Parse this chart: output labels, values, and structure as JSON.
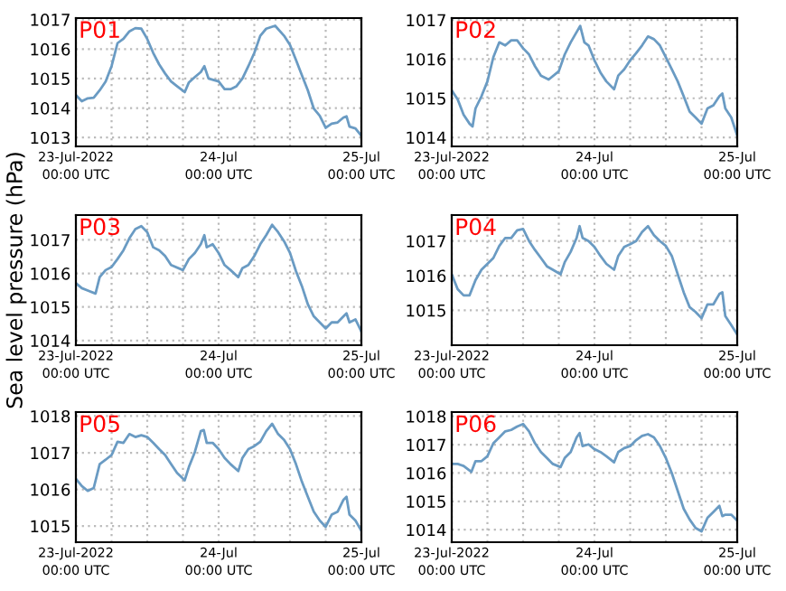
{
  "chart_data": [
    {
      "type": "line",
      "title": "P01",
      "xlim": [
        "2022-07-23T00:00",
        "2022-07-25T00:00"
      ],
      "ylim": [
        1012.7,
        1017.05
      ],
      "yticks": [
        1013,
        1014,
        1015,
        1016,
        1017
      ],
      "grid": true,
      "xticks": [
        {
          "value": "2022-07-23T00:00",
          "label": "23-Jul-2022\n00:00 UTC"
        },
        {
          "value": "2022-07-23T06:00",
          "label": null
        },
        {
          "value": "2022-07-23T12:00",
          "label": null
        },
        {
          "value": "2022-07-23T18:00",
          "label": null
        },
        {
          "value": "2022-07-24T00:00",
          "label": "24-Jul\n00:00 UTC"
        },
        {
          "value": "2022-07-24T06:00",
          "label": null
        },
        {
          "value": "2022-07-24T12:00",
          "label": null
        },
        {
          "value": "2022-07-24T18:00",
          "label": null
        },
        {
          "value": "2022-07-25T00:00",
          "label": "25-Jul\n00:00 UTC"
        }
      ],
      "series": [
        {
          "color": "#6a9bc3",
          "x": [
            "2022-07-23T00:00",
            "2022-07-23T01:00",
            "2022-07-23T02:00",
            "2022-07-23T03:00",
            "2022-07-23T04:00",
            "2022-07-23T05:00",
            "2022-07-23T06:00",
            "2022-07-23T07:00",
            "2022-07-23T08:00",
            "2022-07-23T09:00",
            "2022-07-23T10:00",
            "2022-07-23T11:00",
            "2022-07-23T12:00",
            "2022-07-23T13:00",
            "2022-07-23T14:00",
            "2022-07-23T15:00",
            "2022-07-23T16:00",
            "2022-07-23T17:00",
            "2022-07-23T18:18",
            "2022-07-23T19:00",
            "2022-07-23T20:00",
            "2022-07-23T21:00",
            "2022-07-23T21:36",
            "2022-07-23T22:18",
            "2022-07-24T00:00",
            "2022-07-24T01:00",
            "2022-07-24T02:00",
            "2022-07-24T03:00",
            "2022-07-24T04:00",
            "2022-07-24T05:00",
            "2022-07-24T06:00",
            "2022-07-24T07:00",
            "2022-07-24T08:00",
            "2022-07-24T09:30",
            "2022-07-24T11:00",
            "2022-07-24T12:00",
            "2022-07-24T13:00",
            "2022-07-24T14:00",
            "2022-07-24T15:00",
            "2022-07-24T16:00",
            "2022-07-24T17:00",
            "2022-07-24T18:00",
            "2022-07-24T19:00",
            "2022-07-24T20:00",
            "2022-07-24T21:00",
            "2022-07-24T21:30",
            "2022-07-24T22:00",
            "2022-07-24T23:00",
            "2022-07-25T00:00"
          ],
          "values": [
            1014.44,
            1014.23,
            1014.33,
            1014.35,
            1014.6,
            1014.9,
            1015.42,
            1016.2,
            1016.35,
            1016.6,
            1016.71,
            1016.69,
            1016.34,
            1015.87,
            1015.48,
            1015.17,
            1014.9,
            1014.74,
            1014.54,
            1014.87,
            1015.05,
            1015.22,
            1015.42,
            1015.0,
            1014.9,
            1014.64,
            1014.64,
            1014.74,
            1015.0,
            1015.42,
            1015.87,
            1016.45,
            1016.69,
            1016.79,
            1016.45,
            1016.14,
            1015.63,
            1015.11,
            1014.6,
            1013.98,
            1013.74,
            1013.33,
            1013.47,
            1013.51,
            1013.68,
            1013.72,
            1013.37,
            1013.31,
            1013.06
          ]
        }
      ]
    },
    {
      "type": "line",
      "title": "P02",
      "xlim": [
        "2022-07-23T00:00",
        "2022-07-25T00:00"
      ],
      "ylim": [
        1013.77,
        1017.05
      ],
      "yticks": [
        1014,
        1015,
        1016,
        1017
      ],
      "grid": true,
      "xticks": [
        {
          "value": "2022-07-23T00:00",
          "label": "23-Jul-2022\n00:00 UTC"
        },
        {
          "value": "2022-07-23T06:00",
          "label": null
        },
        {
          "value": "2022-07-23T12:00",
          "label": null
        },
        {
          "value": "2022-07-23T18:00",
          "label": null
        },
        {
          "value": "2022-07-24T00:00",
          "label": "24-Jul\n00:00 UTC"
        },
        {
          "value": "2022-07-24T06:00",
          "label": null
        },
        {
          "value": "2022-07-24T12:00",
          "label": null
        },
        {
          "value": "2022-07-24T18:00",
          "label": null
        },
        {
          "value": "2022-07-25T00:00",
          "label": "25-Jul\n00:00 UTC"
        }
      ],
      "series": [
        {
          "color": "#6a9bc3",
          "x": [
            "2022-07-23T00:00",
            "2022-07-23T01:00",
            "2022-07-23T02:00",
            "2022-07-23T03:00",
            "2022-07-23T03:30",
            "2022-07-23T04:00",
            "2022-07-23T05:00",
            "2022-07-23T06:00",
            "2022-07-23T07:00",
            "2022-07-23T08:00",
            "2022-07-23T09:00",
            "2022-07-23T10:00",
            "2022-07-23T11:00",
            "2022-07-23T12:00",
            "2022-07-23T13:00",
            "2022-07-23T14:00",
            "2022-07-23T15:00",
            "2022-07-23T16:18",
            "2022-07-23T18:00",
            "2022-07-23T19:00",
            "2022-07-23T20:00",
            "2022-07-23T21:36",
            "2022-07-23T22:18",
            "2022-07-23T23:00",
            "2022-07-24T00:00",
            "2022-07-24T01:00",
            "2022-07-24T02:00",
            "2022-07-24T03:18",
            "2022-07-24T04:00",
            "2022-07-24T05:00",
            "2022-07-24T06:00",
            "2022-07-24T07:00",
            "2022-07-24T08:00",
            "2022-07-24T09:00",
            "2022-07-24T10:00",
            "2022-07-24T11:00",
            "2022-07-24T12:00",
            "2022-07-24T13:00",
            "2022-07-24T14:00",
            "2022-07-24T15:00",
            "2022-07-24T16:00",
            "2022-07-24T17:00",
            "2022-07-24T18:00",
            "2022-07-24T19:00",
            "2022-07-24T20:00",
            "2022-07-24T21:00",
            "2022-07-24T21:30",
            "2022-07-24T22:00",
            "2022-07-24T23:00",
            "2022-07-25T00:00"
          ],
          "values": [
            1015.2,
            1014.97,
            1014.58,
            1014.35,
            1014.28,
            1014.74,
            1015.05,
            1015.43,
            1016.05,
            1016.43,
            1016.35,
            1016.48,
            1016.48,
            1016.28,
            1016.12,
            1015.82,
            1015.58,
            1015.48,
            1015.69,
            1016.12,
            1016.43,
            1016.85,
            1016.43,
            1016.35,
            1015.97,
            1015.66,
            1015.43,
            1015.23,
            1015.58,
            1015.74,
            1015.97,
            1016.15,
            1016.35,
            1016.58,
            1016.51,
            1016.35,
            1016.05,
            1015.74,
            1015.43,
            1015.05,
            1014.66,
            1014.51,
            1014.35,
            1014.74,
            1014.82,
            1015.05,
            1015.12,
            1014.74,
            1014.51,
            1014.05
          ]
        }
      ]
    },
    {
      "type": "line",
      "title": "P03",
      "ylabel": "Sea level pressure (hPa)",
      "xlim": [
        "2022-07-23T00:00",
        "2022-07-25T00:00"
      ],
      "ylim": [
        1013.86,
        1017.74
      ],
      "yticks": [
        1014,
        1015,
        1016,
        1017
      ],
      "grid": true,
      "xticks": [
        {
          "value": "2022-07-23T00:00",
          "label": "23-Jul-2022\n00:00 UTC"
        },
        {
          "value": "2022-07-23T06:00",
          "label": null
        },
        {
          "value": "2022-07-23T12:00",
          "label": null
        },
        {
          "value": "2022-07-23T18:00",
          "label": null
        },
        {
          "value": "2022-07-24T00:00",
          "label": "24-Jul\n00:00 UTC"
        },
        {
          "value": "2022-07-24T06:00",
          "label": null
        },
        {
          "value": "2022-07-24T12:00",
          "label": null
        },
        {
          "value": "2022-07-24T18:00",
          "label": null
        },
        {
          "value": "2022-07-25T00:00",
          "label": "25-Jul\n00:00 UTC"
        }
      ],
      "series": [
        {
          "color": "#6a9bc3",
          "x": [
            "2022-07-23T00:00",
            "2022-07-23T01:00",
            "2022-07-23T02:00",
            "2022-07-23T03:18",
            "2022-07-23T04:00",
            "2022-07-23T05:00",
            "2022-07-23T06:00",
            "2022-07-23T07:00",
            "2022-07-23T08:00",
            "2022-07-23T09:00",
            "2022-07-23T10:00",
            "2022-07-23T11:00",
            "2022-07-23T12:00",
            "2022-07-23T13:00",
            "2022-07-23T14:00",
            "2022-07-23T15:00",
            "2022-07-23T16:00",
            "2022-07-23T18:00",
            "2022-07-23T19:00",
            "2022-07-23T20:00",
            "2022-07-23T21:00",
            "2022-07-23T21:36",
            "2022-07-23T22:00",
            "2022-07-23T23:00",
            "2022-07-24T00:00",
            "2022-07-24T01:00",
            "2022-07-24T02:00",
            "2022-07-24T03:18",
            "2022-07-24T04:00",
            "2022-07-24T05:00",
            "2022-07-24T06:00",
            "2022-07-24T07:00",
            "2022-07-24T08:00",
            "2022-07-24T09:00",
            "2022-07-24T10:00",
            "2022-07-24T11:00",
            "2022-07-24T12:00",
            "2022-07-24T13:00",
            "2022-07-24T14:00",
            "2022-07-24T15:00",
            "2022-07-24T16:00",
            "2022-07-24T17:00",
            "2022-07-24T18:00",
            "2022-07-24T19:00",
            "2022-07-24T20:00",
            "2022-07-24T21:00",
            "2022-07-24T21:30",
            "2022-07-24T22:00",
            "2022-07-24T23:00",
            "2022-07-25T00:00"
          ],
          "values": [
            1015.71,
            1015.56,
            1015.49,
            1015.4,
            1015.89,
            1016.1,
            1016.19,
            1016.43,
            1016.69,
            1017.05,
            1017.32,
            1017.41,
            1017.23,
            1016.78,
            1016.69,
            1016.52,
            1016.25,
            1016.1,
            1016.43,
            1016.61,
            1016.87,
            1017.14,
            1016.78,
            1016.87,
            1016.61,
            1016.25,
            1016.1,
            1015.89,
            1016.16,
            1016.25,
            1016.52,
            1016.87,
            1017.14,
            1017.45,
            1017.23,
            1016.96,
            1016.61,
            1016.07,
            1015.62,
            1015.08,
            1014.72,
            1014.54,
            1014.36,
            1014.54,
            1014.54,
            1014.72,
            1014.81,
            1014.54,
            1014.63,
            1014.27
          ]
        }
      ]
    },
    {
      "type": "line",
      "title": "P04",
      "xlim": [
        "2022-07-23T00:00",
        "2022-07-25T00:00"
      ],
      "ylim": [
        1013.99,
        1017.75
      ],
      "yticks": [
        1015,
        1016,
        1017
      ],
      "grid": true,
      "xticks": [
        {
          "value": "2022-07-23T00:00",
          "label": "23-Jul-2022\n00:00 UTC"
        },
        {
          "value": "2022-07-23T06:00",
          "label": null
        },
        {
          "value": "2022-07-23T12:00",
          "label": null
        },
        {
          "value": "2022-07-23T18:00",
          "label": null
        },
        {
          "value": "2022-07-24T00:00",
          "label": "24-Jul\n00:00 UTC"
        },
        {
          "value": "2022-07-24T06:00",
          "label": null
        },
        {
          "value": "2022-07-24T12:00",
          "label": null
        },
        {
          "value": "2022-07-24T18:00",
          "label": null
        },
        {
          "value": "2022-07-25T00:00",
          "label": "25-Jul\n00:00 UTC"
        }
      ],
      "series": [
        {
          "color": "#6a9bc3",
          "x": [
            "2022-07-23T00:00",
            "2022-07-23T01:00",
            "2022-07-23T02:00",
            "2022-07-23T03:00",
            "2022-07-23T04:00",
            "2022-07-23T05:00",
            "2022-07-23T06:00",
            "2022-07-23T07:00",
            "2022-07-23T08:00",
            "2022-07-23T09:00",
            "2022-07-23T10:00",
            "2022-07-23T11:00",
            "2022-07-23T12:00",
            "2022-07-23T13:00",
            "2022-07-23T14:00",
            "2022-07-23T15:00",
            "2022-07-23T16:00",
            "2022-07-23T17:00",
            "2022-07-23T18:18",
            "2022-07-23T19:00",
            "2022-07-23T20:00",
            "2022-07-23T21:00",
            "2022-07-23T21:30",
            "2022-07-23T22:00",
            "2022-07-23T23:00",
            "2022-07-24T00:00",
            "2022-07-24T01:00",
            "2022-07-24T02:00",
            "2022-07-24T03:18",
            "2022-07-24T04:00",
            "2022-07-24T05:00",
            "2022-07-24T06:00",
            "2022-07-24T07:00",
            "2022-07-24T08:00",
            "2022-07-24T09:00",
            "2022-07-24T10:00",
            "2022-07-24T11:00",
            "2022-07-24T12:00",
            "2022-07-24T13:00",
            "2022-07-24T14:00",
            "2022-07-24T15:00",
            "2022-07-24T16:00",
            "2022-07-24T17:00",
            "2022-07-24T18:00",
            "2022-07-24T19:00",
            "2022-07-24T20:00",
            "2022-07-24T21:00",
            "2022-07-24T21:30",
            "2022-07-24T22:00",
            "2022-07-24T23:00",
            "2022-07-25T00:00"
          ],
          "values": [
            1016.04,
            1015.61,
            1015.43,
            1015.43,
            1015.87,
            1016.17,
            1016.34,
            1016.51,
            1016.86,
            1017.09,
            1017.09,
            1017.31,
            1017.35,
            1017.0,
            1016.74,
            1016.51,
            1016.27,
            1016.17,
            1016.04,
            1016.39,
            1016.69,
            1017.09,
            1017.43,
            1017.09,
            1017.0,
            1016.83,
            1016.57,
            1016.34,
            1016.17,
            1016.57,
            1016.83,
            1016.91,
            1017.0,
            1017.26,
            1017.43,
            1017.17,
            1017.0,
            1016.86,
            1016.57,
            1016.04,
            1015.52,
            1015.09,
            1014.95,
            1014.77,
            1015.17,
            1015.17,
            1015.47,
            1015.52,
            1014.83,
            1014.57,
            1014.3
          ]
        }
      ]
    },
    {
      "type": "line",
      "title": "P05",
      "xlim": [
        "2022-07-23T00:00",
        "2022-07-25T00:00"
      ],
      "ylim": [
        1014.56,
        1018.11
      ],
      "yticks": [
        1015,
        1016,
        1017,
        1018
      ],
      "grid": true,
      "xticks": [
        {
          "value": "2022-07-23T00:00",
          "label": "23-Jul-2022\n00:00 UTC"
        },
        {
          "value": "2022-07-23T06:00",
          "label": null
        },
        {
          "value": "2022-07-23T12:00",
          "label": null
        },
        {
          "value": "2022-07-23T18:00",
          "label": null
        },
        {
          "value": "2022-07-24T00:00",
          "label": "24-Jul\n00:00 UTC"
        },
        {
          "value": "2022-07-24T06:00",
          "label": null
        },
        {
          "value": "2022-07-24T12:00",
          "label": null
        },
        {
          "value": "2022-07-24T18:00",
          "label": null
        },
        {
          "value": "2022-07-25T00:00",
          "label": "25-Jul\n00:00 UTC"
        }
      ],
      "series": [
        {
          "color": "#6a9bc3",
          "x": [
            "2022-07-23T00:00",
            "2022-07-23T01:00",
            "2022-07-23T02:00",
            "2022-07-23T03:00",
            "2022-07-23T04:00",
            "2022-07-23T05:00",
            "2022-07-23T06:00",
            "2022-07-23T07:00",
            "2022-07-23T08:00",
            "2022-07-23T09:00",
            "2022-07-23T10:00",
            "2022-07-23T11:00",
            "2022-07-23T12:00",
            "2022-07-23T13:00",
            "2022-07-23T14:00",
            "2022-07-23T15:00",
            "2022-07-23T16:00",
            "2022-07-23T17:00",
            "2022-07-23T18:18",
            "2022-07-23T19:00",
            "2022-07-23T20:00",
            "2022-07-23T21:00",
            "2022-07-23T21:30",
            "2022-07-23T22:00",
            "2022-07-23T23:00",
            "2022-07-24T00:00",
            "2022-07-24T01:00",
            "2022-07-24T02:00",
            "2022-07-24T03:18",
            "2022-07-24T04:00",
            "2022-07-24T05:00",
            "2022-07-24T06:00",
            "2022-07-24T07:00",
            "2022-07-24T08:00",
            "2022-07-24T09:00",
            "2022-07-24T10:00",
            "2022-07-24T11:00",
            "2022-07-24T12:00",
            "2022-07-24T13:00",
            "2022-07-24T14:00",
            "2022-07-24T15:00",
            "2022-07-24T16:00",
            "2022-07-24T17:00",
            "2022-07-24T18:00",
            "2022-07-24T19:00",
            "2022-07-24T20:00",
            "2022-07-24T21:00",
            "2022-07-24T21:30",
            "2022-07-24T22:00",
            "2022-07-24T23:00",
            "2022-07-25T00:00"
          ],
          "values": [
            1016.29,
            1016.09,
            1015.96,
            1016.04,
            1016.69,
            1016.81,
            1016.94,
            1017.3,
            1017.27,
            1017.51,
            1017.43,
            1017.48,
            1017.43,
            1017.27,
            1017.1,
            1016.94,
            1016.69,
            1016.45,
            1016.25,
            1016.61,
            1017.02,
            1017.59,
            1017.62,
            1017.27,
            1017.27,
            1017.1,
            1016.86,
            1016.69,
            1016.5,
            1016.86,
            1017.1,
            1017.18,
            1017.3,
            1017.59,
            1017.79,
            1017.51,
            1017.35,
            1017.1,
            1016.69,
            1016.21,
            1015.8,
            1015.39,
            1015.15,
            1014.98,
            1015.31,
            1015.39,
            1015.72,
            1015.8,
            1015.31,
            1015.15,
            1014.87
          ]
        }
      ]
    },
    {
      "type": "line",
      "title": "P06",
      "xlim": [
        "2022-07-23T00:00",
        "2022-07-25T00:00"
      ],
      "ylim": [
        1013.56,
        1018.15
      ],
      "yticks": [
        1014,
        1015,
        1016,
        1017,
        1018
      ],
      "grid": true,
      "xticks": [
        {
          "value": "2022-07-23T00:00",
          "label": "23-Jul-2022\n00:00 UTC"
        },
        {
          "value": "2022-07-23T06:00",
          "label": null
        },
        {
          "value": "2022-07-23T12:00",
          "label": null
        },
        {
          "value": "2022-07-23T18:00",
          "label": null
        },
        {
          "value": "2022-07-24T00:00",
          "label": "24-Jul\n00:00 UTC"
        },
        {
          "value": "2022-07-24T06:00",
          "label": null
        },
        {
          "value": "2022-07-24T12:00",
          "label": null
        },
        {
          "value": "2022-07-24T18:00",
          "label": null
        },
        {
          "value": "2022-07-25T00:00",
          "label": "25-Jul\n00:00 UTC"
        }
      ],
      "series": [
        {
          "color": "#6a9bc3",
          "x": [
            "2022-07-23T00:00",
            "2022-07-23T01:00",
            "2022-07-23T02:00",
            "2022-07-23T03:18",
            "2022-07-23T04:00",
            "2022-07-23T05:00",
            "2022-07-23T06:00",
            "2022-07-23T07:00",
            "2022-07-23T08:00",
            "2022-07-23T09:00",
            "2022-07-23T10:00",
            "2022-07-23T11:00",
            "2022-07-23T12:00",
            "2022-07-23T13:00",
            "2022-07-23T14:00",
            "2022-07-23T15:00",
            "2022-07-23T16:00",
            "2022-07-23T17:00",
            "2022-07-23T18:18",
            "2022-07-23T19:00",
            "2022-07-23T20:00",
            "2022-07-23T21:00",
            "2022-07-23T21:30",
            "2022-07-23T22:00",
            "2022-07-23T23:00",
            "2022-07-24T00:00",
            "2022-07-24T01:00",
            "2022-07-24T02:00",
            "2022-07-24T03:18",
            "2022-07-24T04:00",
            "2022-07-24T05:00",
            "2022-07-24T06:00",
            "2022-07-24T07:00",
            "2022-07-24T08:00",
            "2022-07-24T09:00",
            "2022-07-24T10:00",
            "2022-07-24T11:00",
            "2022-07-24T12:00",
            "2022-07-24T13:00",
            "2022-07-24T14:00",
            "2022-07-24T15:00",
            "2022-07-24T16:00",
            "2022-07-24T17:00",
            "2022-07-24T18:00",
            "2022-07-24T19:00",
            "2022-07-24T20:00",
            "2022-07-24T21:00",
            "2022-07-24T21:30",
            "2022-07-24T22:00",
            "2022-07-24T23:00",
            "2022-07-25T00:00"
          ],
          "values": [
            1016.32,
            1016.32,
            1016.25,
            1016.04,
            1016.42,
            1016.42,
            1016.59,
            1017.05,
            1017.26,
            1017.47,
            1017.52,
            1017.64,
            1017.73,
            1017.47,
            1017.05,
            1016.74,
            1016.53,
            1016.32,
            1016.21,
            1016.53,
            1016.74,
            1017.26,
            1017.41,
            1016.95,
            1017.01,
            1016.84,
            1016.74,
            1016.59,
            1016.38,
            1016.74,
            1016.88,
            1016.95,
            1017.16,
            1017.31,
            1017.37,
            1017.26,
            1016.95,
            1016.53,
            1016.0,
            1015.37,
            1014.74,
            1014.36,
            1014.06,
            1013.94,
            1014.42,
            1014.63,
            1014.84,
            1014.48,
            1014.53,
            1014.53,
            1014.32
          ]
        }
      ]
    }
  ]
}
